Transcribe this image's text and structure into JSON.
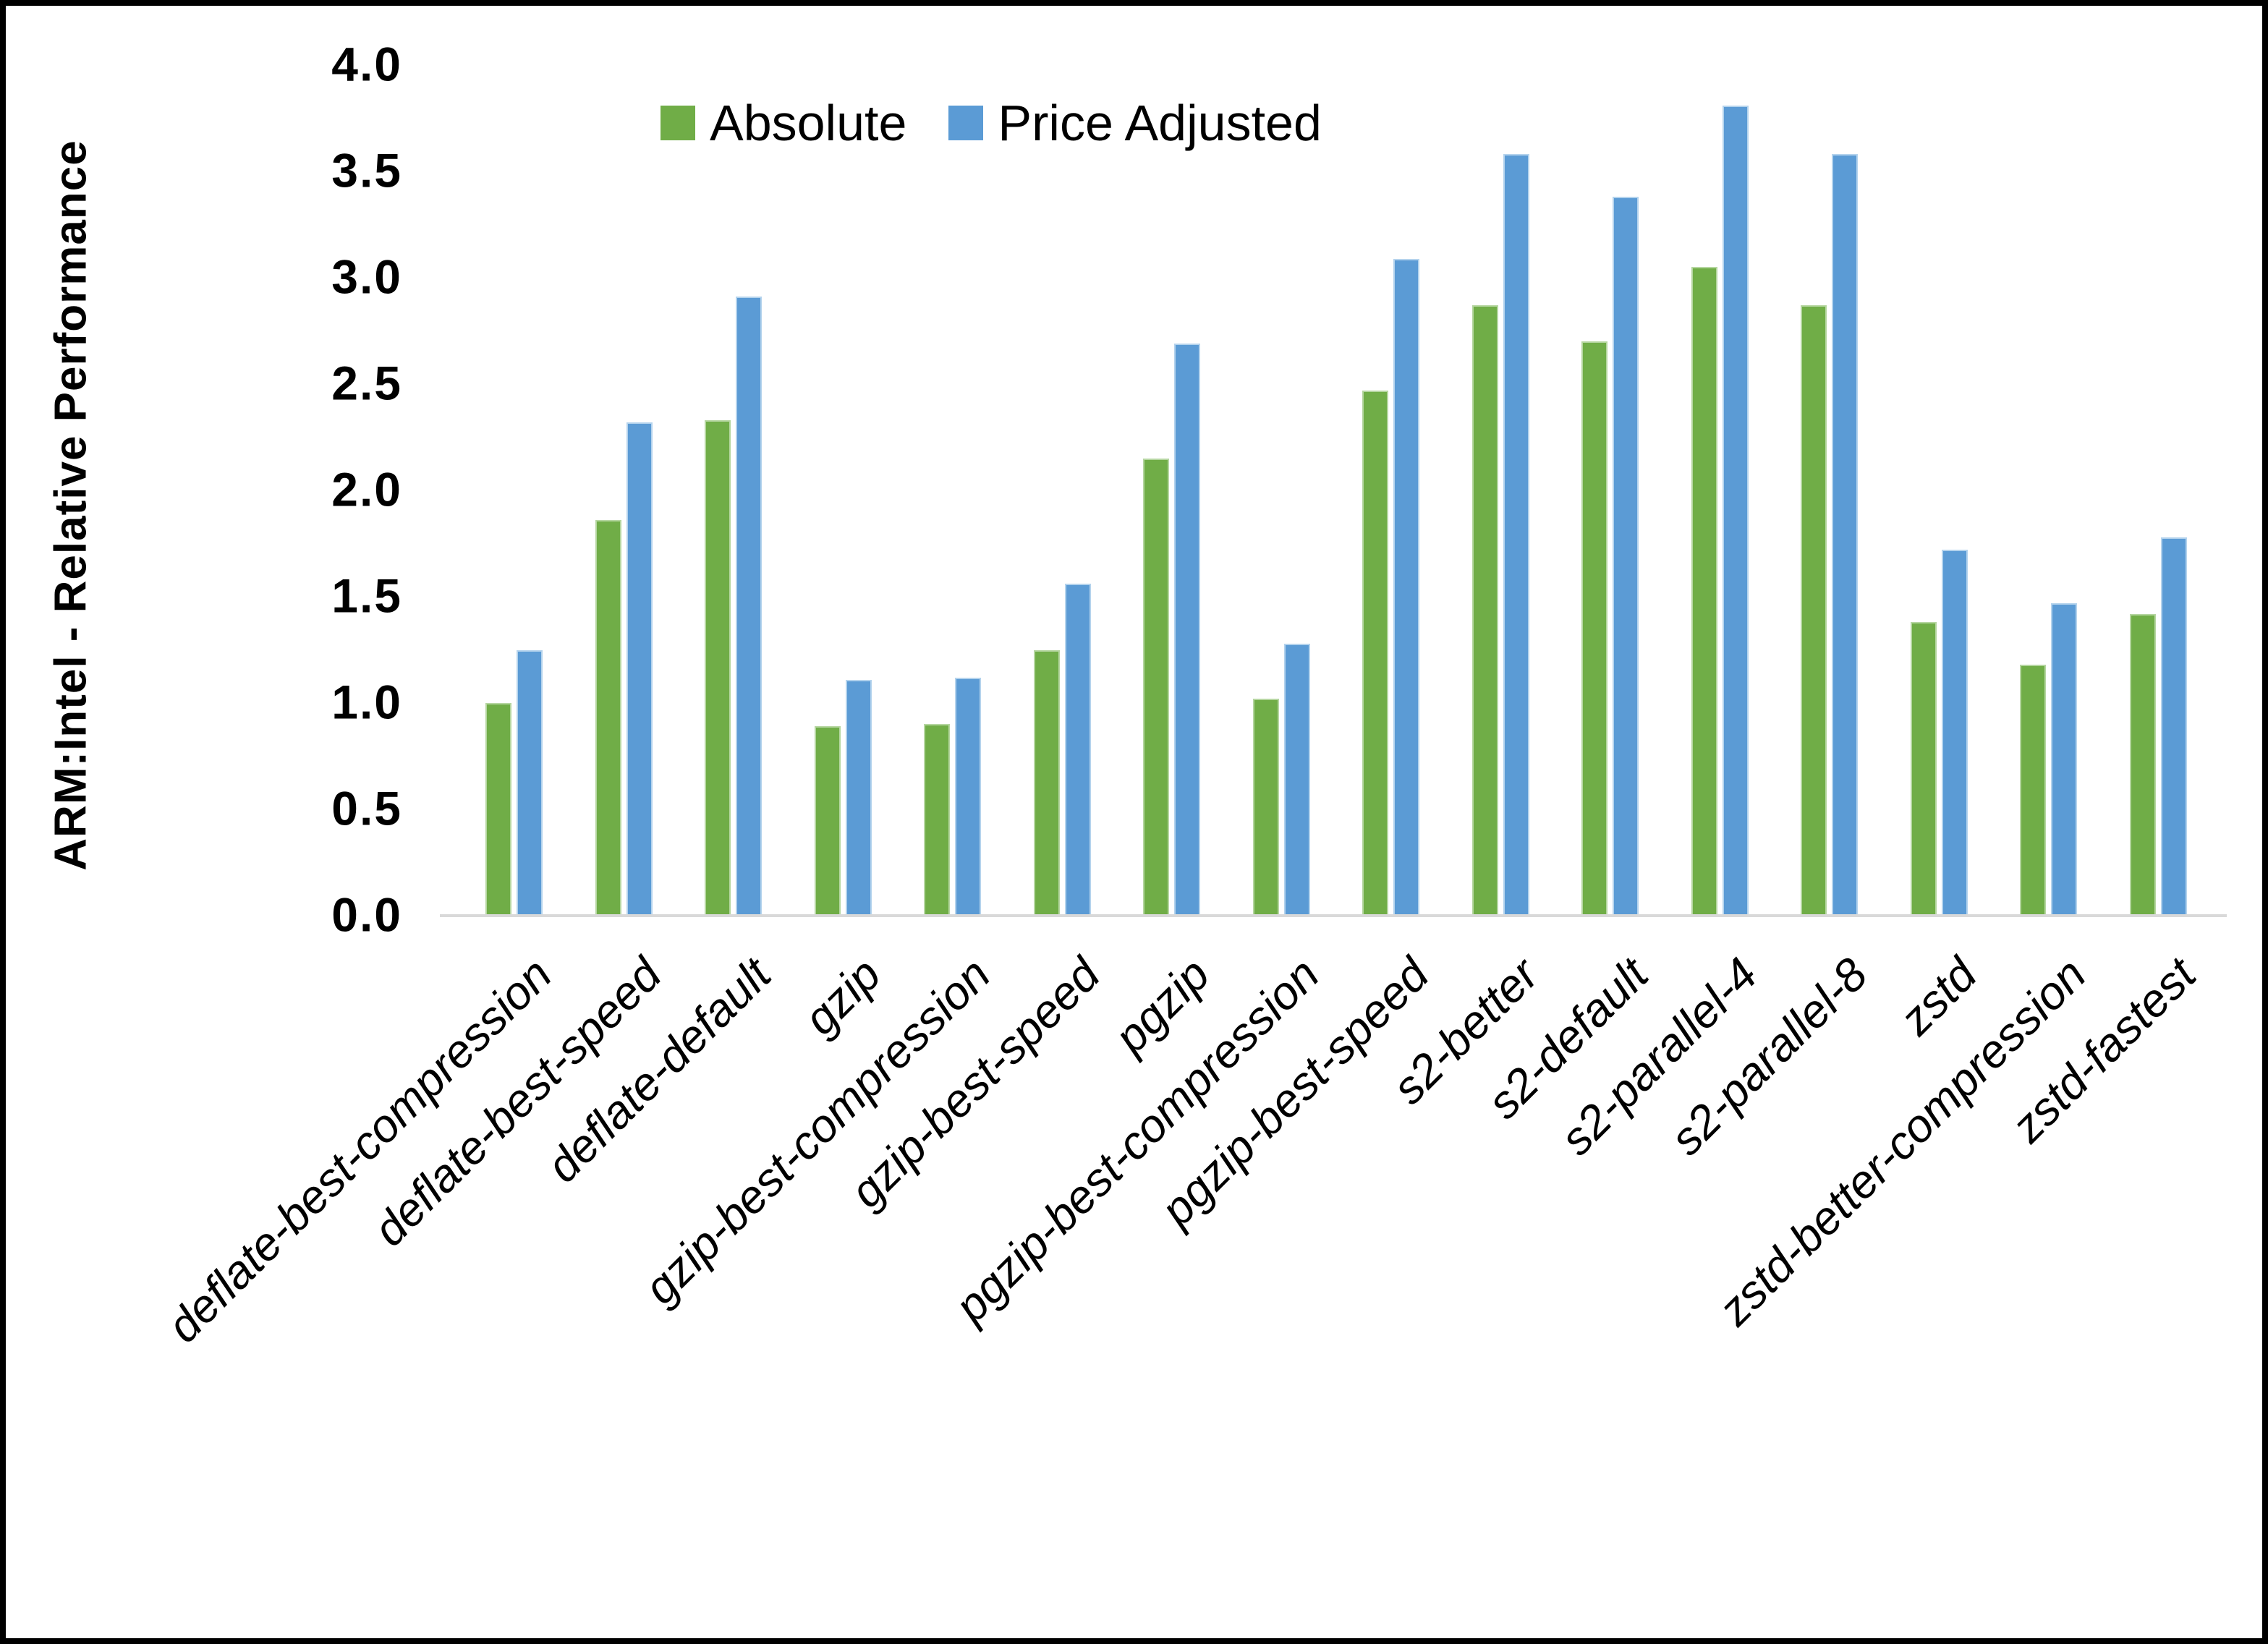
{
  "chart_data": {
    "type": "bar",
    "title": "",
    "ylabel": "ARM:Intel - Relative Performance",
    "xlabel": "",
    "ylim": [
      0,
      4
    ],
    "ytick_step": 0.5,
    "yticks": [
      "0.0",
      "0.5",
      "1.0",
      "1.5",
      "2.0",
      "2.5",
      "3.0",
      "3.5",
      "4.0"
    ],
    "grid": false,
    "legend_position": "top-center",
    "axis_line_color": "#d9d9d9",
    "text_color": "#000000",
    "background_color": "#ffffff",
    "categories": [
      "deflate-best-compression",
      "deflate-best-speed",
      "deflate-default",
      "gzip",
      "gzip-best-compression",
      "gzip-best-speed",
      "pgzip",
      "pgzip-best-compression",
      "pgzip-best-speed",
      "s2-better",
      "s2-default",
      "s2-parallel-4",
      "s2-parallel-8",
      "zstd",
      "zstd-better-compression",
      "zstd-fastest"
    ],
    "series": [
      {
        "name": "Absolute",
        "color": "#70AD47",
        "border": "#b5d6a0",
        "values": [
          1.0,
          1.86,
          2.33,
          0.89,
          0.9,
          1.25,
          2.15,
          1.02,
          2.47,
          2.87,
          2.7,
          3.05,
          2.87,
          1.38,
          1.18,
          1.42
        ]
      },
      {
        "name": "Price Adjusted",
        "color": "#5B9BD5",
        "border": "#b4d3ed",
        "values": [
          1.25,
          2.32,
          2.91,
          1.11,
          1.12,
          1.56,
          2.69,
          1.28,
          3.09,
          3.58,
          3.38,
          3.81,
          3.58,
          1.72,
          1.47,
          1.78
        ]
      }
    ]
  }
}
